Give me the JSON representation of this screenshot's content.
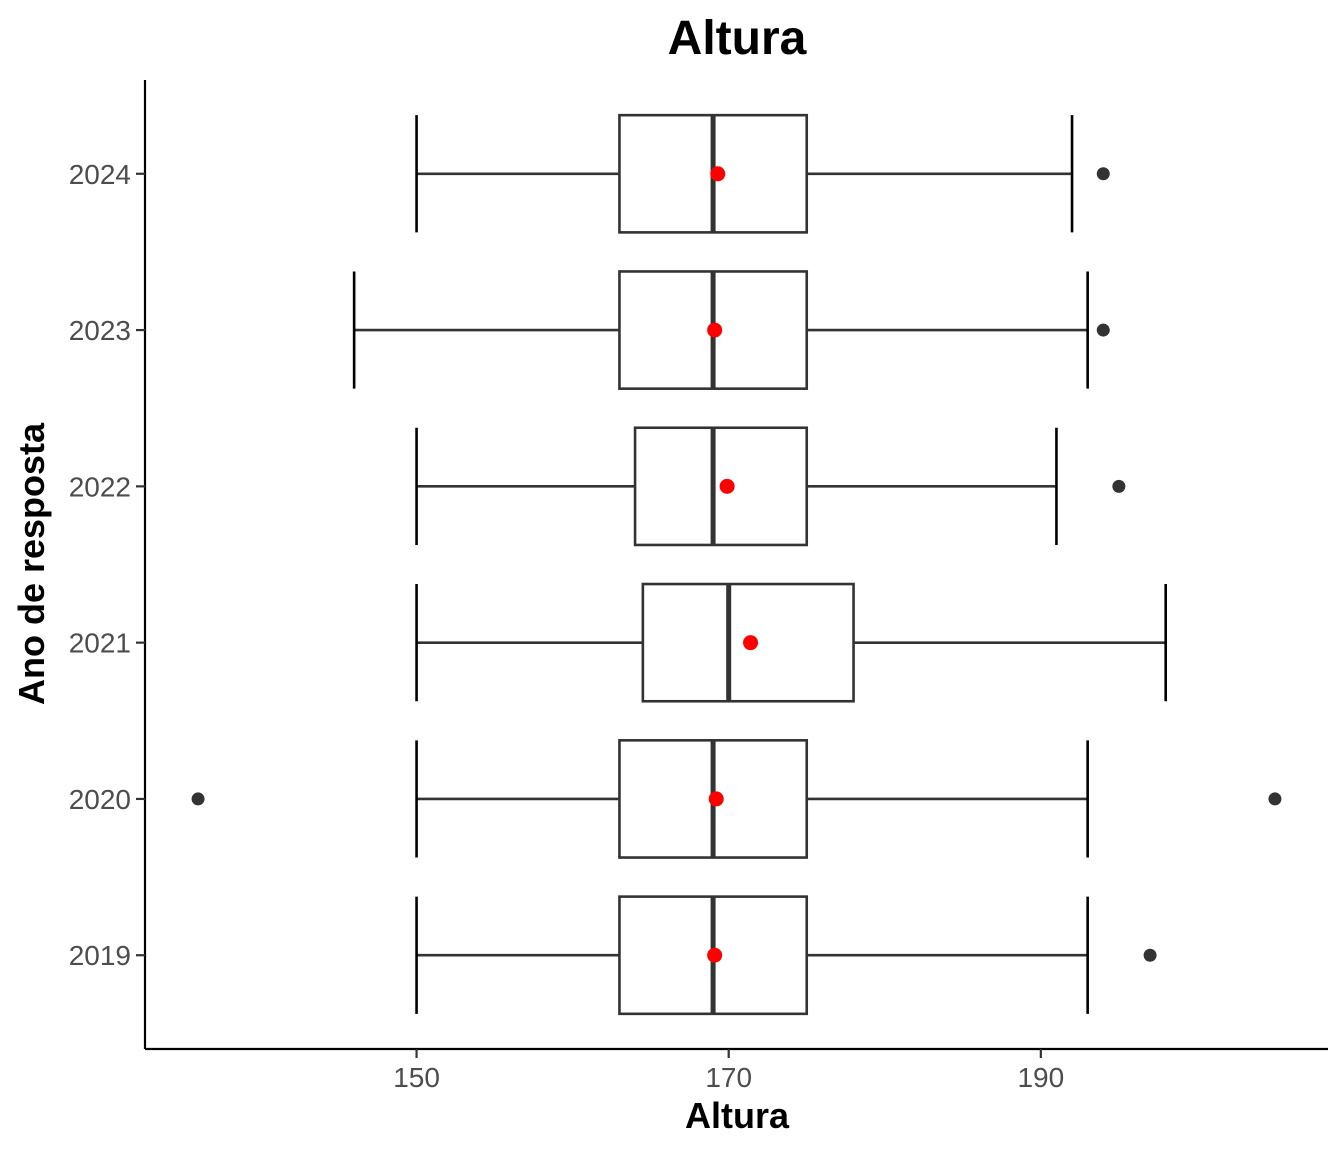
{
  "chart_data": {
    "type": "boxplot",
    "orientation": "horizontal",
    "title": "Altura",
    "xlabel": "Altura",
    "ylabel": "Ano de resposta",
    "xlim": [
      132.6,
      208.4
    ],
    "x_ticks": [
      "150",
      "170",
      "190"
    ],
    "x_tick_values": [
      150,
      170,
      190
    ],
    "grid": false,
    "legend": "none",
    "colors": {
      "box_line": "#333333",
      "box_fill": "#ffffff",
      "mean": "#ff0000",
      "outlier": "#333333",
      "axis": "#000000"
    },
    "categories": [
      "2024",
      "2023",
      "2022",
      "2021",
      "2020",
      "2019"
    ],
    "boxes": [
      {
        "category": "2024",
        "whisker_low": 150,
        "q1": 163,
        "median": 169,
        "q3": 175,
        "whisker_high": 192,
        "mean": 169.3,
        "outliers": [
          194
        ]
      },
      {
        "category": "2023",
        "whisker_low": 146,
        "q1": 163,
        "median": 169,
        "q3": 175,
        "whisker_high": 193,
        "mean": 169.1,
        "outliers": [
          194
        ]
      },
      {
        "category": "2022",
        "whisker_low": 150,
        "q1": 164,
        "median": 169,
        "q3": 175,
        "whisker_high": 191,
        "mean": 169.9,
        "outliers": [
          195
        ]
      },
      {
        "category": "2021",
        "whisker_low": 150,
        "q1": 164.5,
        "median": 170,
        "q3": 178,
        "whisker_high": 198,
        "mean": 171.4,
        "outliers": []
      },
      {
        "category": "2020",
        "whisker_low": 150,
        "q1": 163,
        "median": 169,
        "q3": 175,
        "whisker_high": 193,
        "mean": 169.2,
        "outliers": [
          136,
          205
        ]
      },
      {
        "category": "2019",
        "whisker_low": 150,
        "q1": 163,
        "median": 169,
        "q3": 175,
        "whisker_high": 193,
        "mean": 169.1,
        "outliers": [
          197
        ]
      }
    ]
  }
}
